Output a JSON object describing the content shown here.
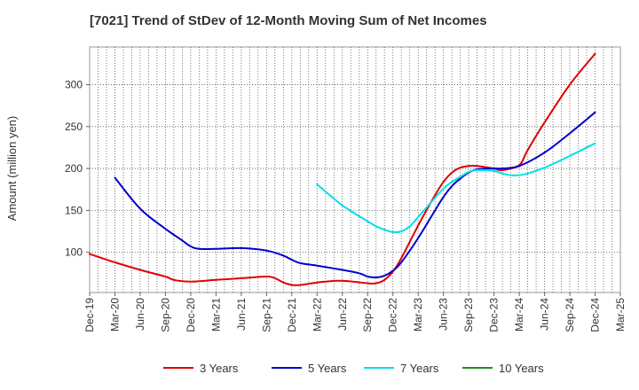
{
  "chart_data": {
    "type": "line",
    "title": "[7021]  Trend of StDev of 12-Month Moving Sum of Net Incomes",
    "ylabel": "Amount (million yen)",
    "xlabel": "",
    "x_ticks": [
      "Dec-19",
      "Mar-20",
      "Jun-20",
      "Sep-20",
      "Dec-20",
      "Mar-21",
      "Jun-21",
      "Sep-21",
      "Dec-21",
      "Mar-22",
      "Jun-22",
      "Sep-22",
      "Dec-22",
      "Mar-23",
      "Jun-23",
      "Sep-23",
      "Dec-23",
      "Mar-24",
      "Jun-24",
      "Sep-24",
      "Dec-24",
      "Mar-25"
    ],
    "y_ticks": [
      100,
      150,
      200,
      250,
      300
    ],
    "ylim": [
      52,
      345
    ],
    "grid": true,
    "legend_position": "bottom",
    "series": [
      {
        "name": "3 Years",
        "color": "#e00000",
        "points": [
          [
            "Dec-19",
            98
          ],
          [
            "Mar-20",
            88
          ],
          [
            "Jun-20",
            79
          ],
          [
            "Sep-20",
            71
          ],
          [
            "Oct-20",
            67
          ],
          [
            "Dec-20",
            65
          ],
          [
            "Mar-21",
            67
          ],
          [
            "Jun-21",
            69
          ],
          [
            "Sep-21",
            71
          ],
          [
            "Oct-21",
            69
          ],
          [
            "Nov-21",
            64
          ],
          [
            "Dec-21",
            61
          ],
          [
            "Jan-22",
            61
          ],
          [
            "Mar-22",
            64
          ],
          [
            "Apr-22",
            65
          ],
          [
            "Jun-22",
            66
          ],
          [
            "Sep-22",
            63
          ],
          [
            "Oct-22",
            63
          ],
          [
            "Nov-22",
            67
          ],
          [
            "Dec-22",
            77
          ],
          [
            "Jan-23",
            93
          ],
          [
            "Mar-23",
            132
          ],
          [
            "May-23",
            168
          ],
          [
            "Jun-23",
            184
          ],
          [
            "Jul-23",
            195
          ],
          [
            "Aug-23",
            201
          ],
          [
            "Sep-23",
            203
          ],
          [
            "Oct-23",
            203
          ],
          [
            "Dec-23",
            200
          ],
          [
            "Jan-24",
            198
          ],
          [
            "Mar-24",
            204
          ],
          [
            "Apr-24",
            222
          ],
          [
            "Jun-24",
            255
          ],
          [
            "Sep-24",
            300
          ],
          [
            "Dec-24",
            337
          ]
        ]
      },
      {
        "name": "5 Years",
        "color": "#0000cc",
        "points": [
          [
            "Mar-20",
            189
          ],
          [
            "Jun-20",
            152
          ],
          [
            "Sep-20",
            128
          ],
          [
            "Nov-20",
            114
          ],
          [
            "Dec-20",
            107
          ],
          [
            "Jan-21",
            104
          ],
          [
            "Mar-21",
            104
          ],
          [
            "Jun-21",
            105
          ],
          [
            "Sep-21",
            102
          ],
          [
            "Nov-21",
            96
          ],
          [
            "Dec-21",
            91
          ],
          [
            "Jan-22",
            87
          ],
          [
            "Mar-22",
            84
          ],
          [
            "Jun-22",
            79
          ],
          [
            "Aug-22",
            75
          ],
          [
            "Sep-22",
            71
          ],
          [
            "Oct-22",
            70
          ],
          [
            "Nov-22",
            72
          ],
          [
            "Dec-22",
            78
          ],
          [
            "Jan-23",
            88
          ],
          [
            "Mar-23",
            117
          ],
          [
            "May-23",
            150
          ],
          [
            "Jun-23",
            166
          ],
          [
            "Jul-23",
            179
          ],
          [
            "Aug-23",
            188
          ],
          [
            "Sep-23",
            195
          ],
          [
            "Oct-23",
            199
          ],
          [
            "Dec-23",
            200
          ],
          [
            "Jan-24",
            200
          ],
          [
            "Mar-24",
            203
          ],
          [
            "Jun-24",
            219
          ],
          [
            "Sep-24",
            242
          ],
          [
            "Dec-24",
            267
          ]
        ]
      },
      {
        "name": "7 Years",
        "color": "#00e0e8",
        "points": [
          [
            "Mar-22",
            181
          ],
          [
            "Jun-22",
            156
          ],
          [
            "Sep-22",
            137
          ],
          [
            "Oct-22",
            131
          ],
          [
            "Nov-22",
            127
          ],
          [
            "Dec-22",
            124
          ],
          [
            "Jan-23",
            125
          ],
          [
            "Feb-23",
            131
          ],
          [
            "Mar-23",
            142
          ],
          [
            "May-23",
            165
          ],
          [
            "Jun-23",
            176
          ],
          [
            "Jul-23",
            184
          ],
          [
            "Aug-23",
            190
          ],
          [
            "Sep-23",
            196
          ],
          [
            "Oct-23",
            198
          ],
          [
            "Dec-23",
            197
          ],
          [
            "Jan-24",
            194
          ],
          [
            "Feb-24",
            192
          ],
          [
            "Mar-24",
            192
          ],
          [
            "Apr-24",
            194
          ],
          [
            "Jun-24",
            201
          ],
          [
            "Sep-24",
            215
          ],
          [
            "Dec-24",
            230
          ]
        ]
      },
      {
        "name": "10 Years",
        "color": "#228b22",
        "points": []
      }
    ]
  }
}
